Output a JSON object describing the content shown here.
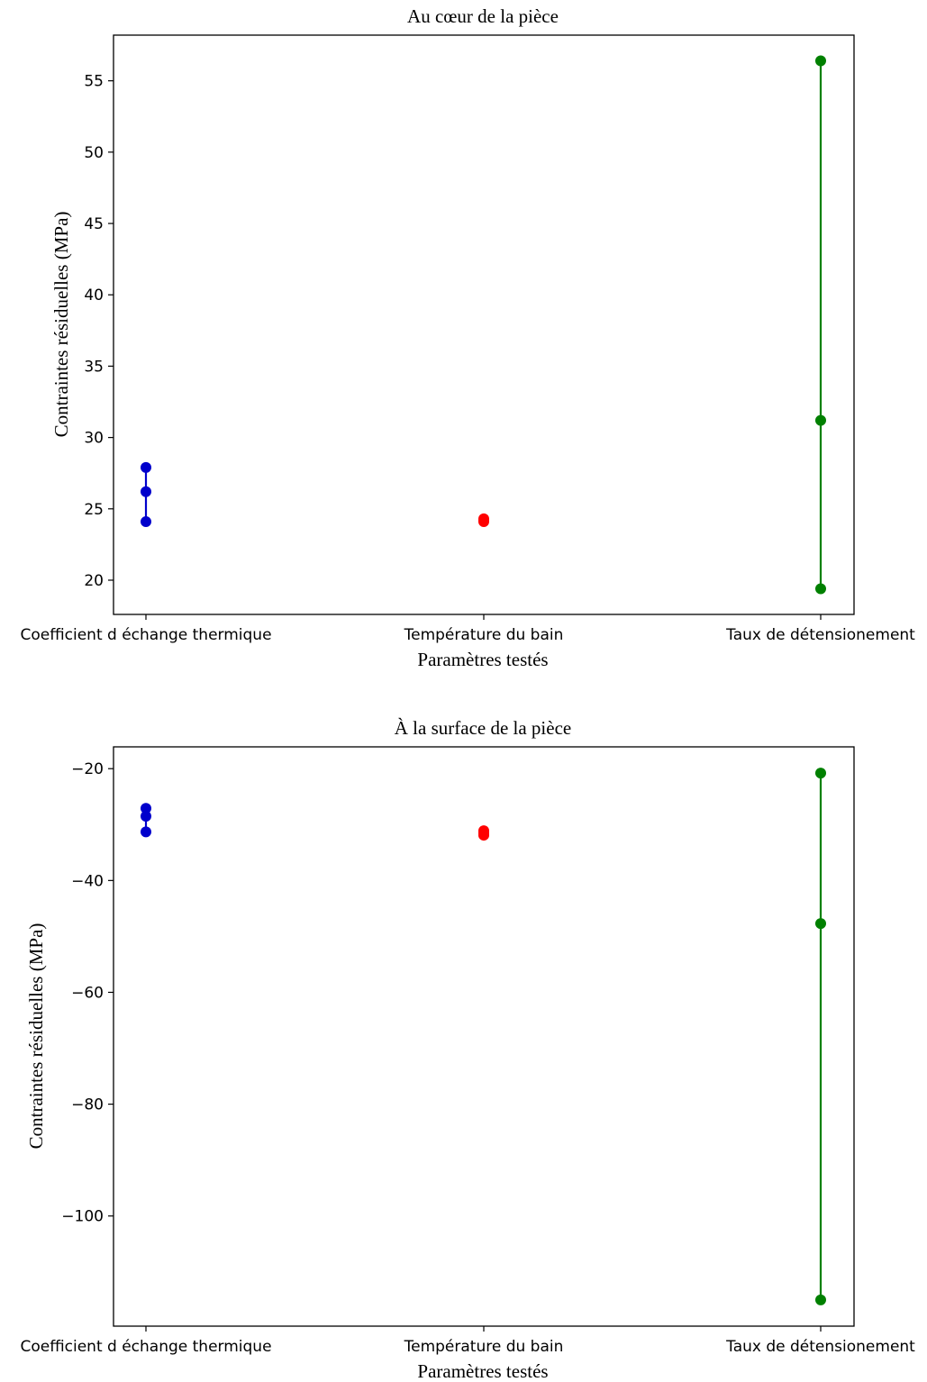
{
  "chart_data": [
    {
      "type": "line",
      "title": "Au cœur de la pièce",
      "xlabel": "Paramètres testés",
      "ylabel": "Contraintes résiduelles (MPa)",
      "categories": [
        "Coefficient d échange thermique",
        "Température du bain",
        "Taux de détensionement"
      ],
      "ylim": [
        17.6,
        58.2
      ],
      "yticks": [
        20,
        25,
        30,
        35,
        40,
        45,
        50,
        55
      ],
      "grid": false,
      "series": [
        {
          "category": "Coefficient d échange thermique",
          "color": "#0000cc",
          "values": [
            24.1,
            26.2,
            27.9
          ]
        },
        {
          "category": "Température du bain",
          "color": "#ff0000",
          "values": [
            24.1,
            24.2,
            24.3
          ]
        },
        {
          "category": "Taux de détensionement",
          "color": "#008000",
          "values": [
            19.4,
            31.2,
            56.4
          ]
        }
      ]
    },
    {
      "type": "line",
      "title": "À la surface de la pièce",
      "xlabel": "Paramètres testés",
      "ylabel": "Contraintes résiduelles (MPa)",
      "categories": [
        "Coefficient d échange thermique",
        "Température du bain",
        "Taux de détensionement"
      ],
      "ylim": [
        -119.7,
        -16.1
      ],
      "yticks": [
        -20,
        -40,
        -60,
        -80,
        -100
      ],
      "grid": false,
      "series": [
        {
          "category": "Coefficient d échange thermique",
          "color": "#0000cc",
          "values": [
            -31.3,
            -28.5,
            -27.1
          ]
        },
        {
          "category": "Température du bain",
          "color": "#ff0000",
          "values": [
            -31.9,
            -31.5,
            -31.1
          ]
        },
        {
          "category": "Taux de détensionement",
          "color": "#008000",
          "values": [
            -115.0,
            -47.7,
            -20.8
          ]
        }
      ]
    }
  ]
}
